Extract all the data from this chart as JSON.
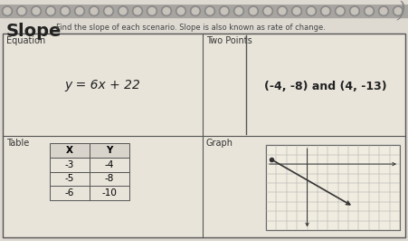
{
  "title": "Slope",
  "subtitle": "Find the slope of each scenario. Slope is also known as rate of change.",
  "section1_label": "Equation",
  "section1_content": "y = 6x + 22",
  "section2_label": "Two Points",
  "section2_content": "(-4, -8) and (4, -13)",
  "section3_label": "Table",
  "section4_label": "Graph",
  "table_headers": [
    "X",
    "Y"
  ],
  "table_data": [
    [
      -3,
      -4
    ],
    [
      -5,
      -8
    ],
    [
      -6,
      -10
    ]
  ],
  "paper_color": "#dedad2",
  "cell_color": "#e8e4da",
  "border_color": "#888888",
  "dark_border": "#555555",
  "spiral_outer": "#888888",
  "spiral_inner": "#c8c4bc",
  "spiral_bar": "#a8a4a0"
}
